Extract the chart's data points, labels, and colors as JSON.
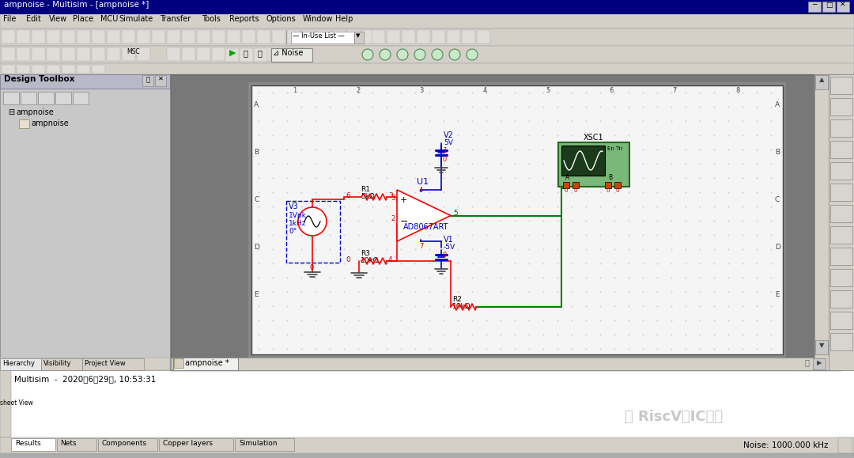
{
  "title_bar": "ampnoise - Multisim - [ampnoise *]",
  "menu_items": [
    "File",
    "Edit",
    "View",
    "Place",
    "MCU",
    "Simulate",
    "Transfer",
    "Tools",
    "Reports",
    "Options",
    "Window",
    "Help"
  ],
  "tab_label": "ampnoise *",
  "status_text": "Multisim  -  2020年6月29日, 10:53:31",
  "noise_status": "Noise: 1000.000 kHz",
  "watermark": "RiscV与IC设计",
  "design_toolbox_title": "Design Toolbox",
  "bottom_tabs": [
    "Results",
    "Nets",
    "Components",
    "Copper layers",
    "Simulation"
  ],
  "left_tabs": [
    "Hierarchy",
    "Visibility",
    "Project View"
  ],
  "bg_outer": "#ababab",
  "bg_schematic": "#f0f0f0",
  "wire_red": "#ff0000",
  "wire_blue": "#0000cd",
  "wire_green": "#008000",
  "node_color": "#cc0000",
  "v3_box_color": "#0000cd",
  "xsc1_bg": "#7ab87a",
  "toolbar_bg": "#d4d0c8",
  "title_bg": "#00007f",
  "left_panel_bg": "#c8c8c8",
  "schematic_paper": "#f8f8f8",
  "schematic_dark_border": "#787878"
}
